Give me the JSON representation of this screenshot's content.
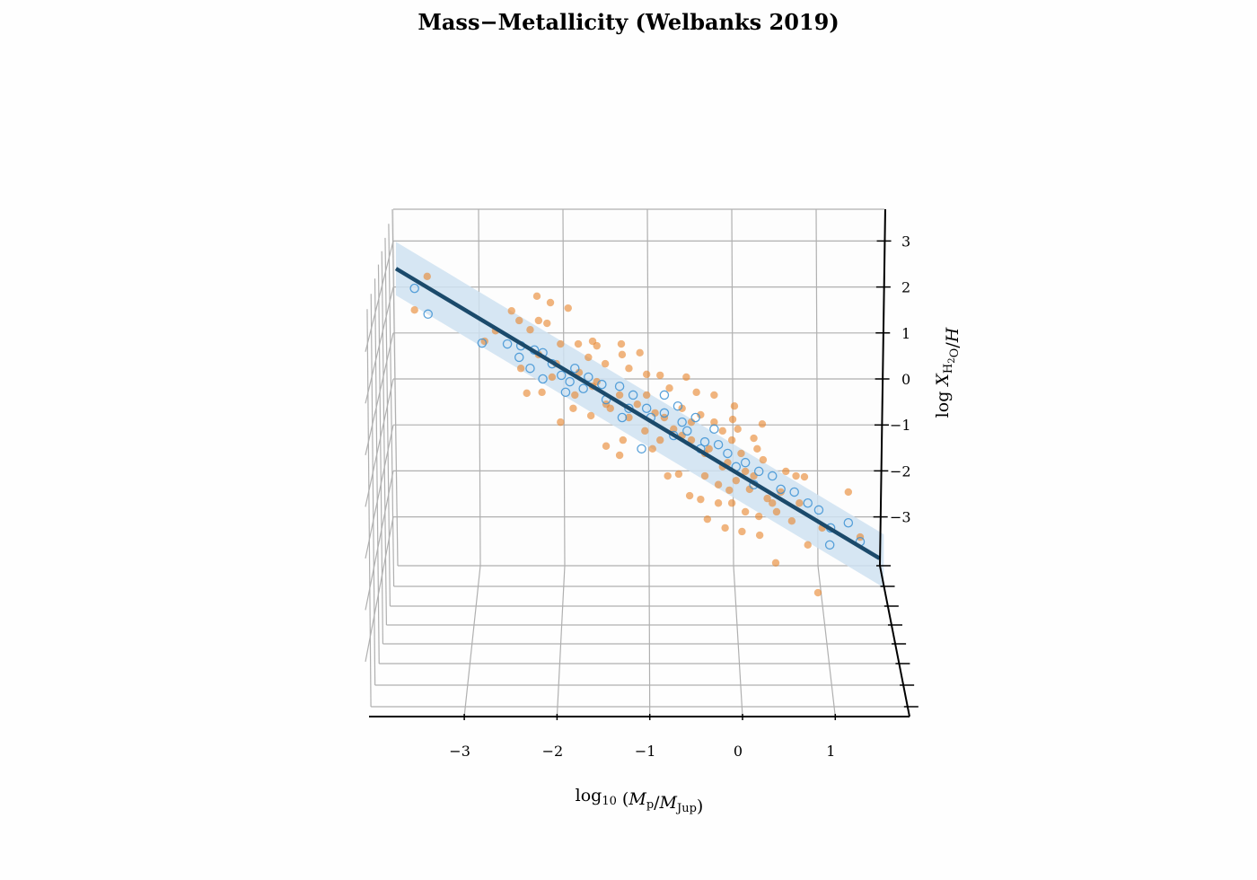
{
  "chart_data": {
    "type": "scatter",
    "projection": "3d",
    "title": "Mass−Metallicity (Welbanks 2019)",
    "xlabel": [
      {
        "t": "log",
        "style": "normal"
      },
      {
        "t": "10",
        "style": "sub"
      },
      {
        "t": " (",
        "style": "normal"
      },
      {
        "t": "M",
        "style": "italic"
      },
      {
        "t": "p",
        "style": "sub"
      },
      {
        "t": "/",
        "style": "normal"
      },
      {
        "t": "M",
        "style": "italic"
      },
      {
        "t": "Jup",
        "style": "sub"
      },
      {
        "t": ")",
        "style": "normal"
      }
    ],
    "zlabel": [
      {
        "t": "log ",
        "style": "normal"
      },
      {
        "t": "X",
        "style": "italic"
      },
      {
        "t": "H",
        "style": "sub"
      },
      {
        "t": "2",
        "style": "subsub"
      },
      {
        "t": "O",
        "style": "sub"
      },
      {
        "t": "/",
        "style": "normal"
      },
      {
        "t": "H",
        "style": "italic"
      }
    ],
    "x_ticks": [
      "−3",
      "−2",
      "−1",
      "0",
      "1"
    ],
    "x_tick_values": [
      -3,
      -2,
      -1,
      0,
      1
    ],
    "z_ticks": [
      "3",
      "2",
      "1",
      "0",
      "−1",
      "−2",
      "−3"
    ],
    "z_tick_values": [
      3,
      2,
      1,
      0,
      -1,
      -2,
      -3
    ],
    "xlim": [
      -4.0,
      1.8
    ],
    "zlim": [
      -4.1,
      3.7
    ],
    "grid": true,
    "fit_line": {
      "slope": -1.1,
      "intercept": -2.0,
      "x_range": [
        -4.0,
        1.73
      ],
      "band_halfwidth": 0.58,
      "color": "#1b4a6b",
      "band_color": "#cfe2f1"
    },
    "colors": {
      "orange": "#e8842a",
      "blue": "#3d92d4"
    },
    "series": [
      {
        "marker": "filled",
        "color": "#e8842a",
        "points": [
          [
            -3.63,
            2.23
          ],
          [
            -3.78,
            1.5
          ],
          [
            -2.33,
            1.8
          ],
          [
            -2.17,
            1.66
          ],
          [
            -1.96,
            1.54
          ],
          [
            -2.63,
            1.48
          ],
          [
            -2.54,
            1.27
          ],
          [
            -2.31,
            1.27
          ],
          [
            -2.21,
            1.21
          ],
          [
            -2.41,
            1.07
          ],
          [
            -2.05,
            0.76
          ],
          [
            -1.84,
            0.76
          ],
          [
            -1.62,
            0.72
          ],
          [
            -1.33,
            0.76
          ],
          [
            -1.32,
            0.53
          ],
          [
            -1.52,
            0.33
          ],
          [
            -1.24,
            0.23
          ],
          [
            -1.03,
            0.1
          ],
          [
            -0.87,
            0.08
          ],
          [
            -0.76,
            -0.2
          ],
          [
            -0.56,
            0.04
          ],
          [
            -0.44,
            -0.29
          ],
          [
            -0.23,
            -0.35
          ],
          [
            0.01,
            -0.59
          ],
          [
            -0.01,
            -0.88
          ],
          [
            0.34,
            -0.98
          ],
          [
            0.24,
            -1.29
          ],
          [
            0.28,
            -1.52
          ],
          [
            0.74,
            -2.11
          ],
          [
            0.84,
            -2.13
          ],
          [
            1.36,
            -2.46
          ],
          [
            0.69,
            -3.09
          ],
          [
            1.05,
            -3.24
          ],
          [
            0.88,
            -3.61
          ],
          [
            0.5,
            -4.0
          ],
          [
            1.0,
            -4.65
          ],
          [
            -2.45,
            -0.31
          ],
          [
            -2.27,
            -0.29
          ],
          [
            -2.05,
            -0.94
          ],
          [
            -1.9,
            -0.64
          ],
          [
            -1.69,
            -0.8
          ],
          [
            -1.35,
            -1.66
          ],
          [
            -1.51,
            -1.46
          ],
          [
            -1.31,
            -1.33
          ],
          [
            -1.05,
            -1.13
          ],
          [
            -0.96,
            -1.52
          ],
          [
            -0.78,
            -2.11
          ],
          [
            -0.65,
            -2.07
          ],
          [
            -0.52,
            -2.54
          ],
          [
            -0.39,
            -2.62
          ],
          [
            -0.31,
            -3.05
          ],
          [
            -0.1,
            -3.24
          ],
          [
            0.1,
            -3.32
          ],
          [
            0.31,
            -3.4
          ],
          [
            -0.18,
            -2.7
          ],
          [
            -0.05,
            -2.42
          ],
          [
            0.14,
            -2.89
          ],
          [
            0.46,
            -2.7
          ],
          [
            0.56,
            -2.46
          ],
          [
            0.35,
            -1.76
          ],
          [
            0.62,
            -2.01
          ],
          [
            -1.88,
            -0.35
          ],
          [
            -1.67,
            -0.16
          ],
          [
            -1.46,
            -0.64
          ],
          [
            -1.24,
            -0.84
          ],
          [
            -0.93,
            -0.74
          ],
          [
            -0.71,
            -1.09
          ],
          [
            -0.5,
            -1.33
          ],
          [
            -0.34,
            -1.62
          ],
          [
            -0.13,
            -1.91
          ],
          [
            0.03,
            -2.21
          ],
          [
            0.19,
            -2.4
          ],
          [
            0.4,
            -2.6
          ],
          [
            -2.1,
            0.33
          ],
          [
            -1.83,
            0.14
          ],
          [
            -1.62,
            -0.06
          ],
          [
            -1.35,
            -0.35
          ],
          [
            -1.14,
            -0.55
          ],
          [
            -0.82,
            -0.84
          ],
          [
            -0.61,
            -1.23
          ],
          [
            -0.29,
            -1.52
          ],
          [
            -0.07,
            -1.82
          ],
          [
            0.14,
            -2.01
          ],
          [
            -2.31,
            0.53
          ],
          [
            -2.15,
            0.04
          ],
          [
            -1.72,
            0.47
          ],
          [
            -1.51,
            -0.55
          ],
          [
            -1.03,
            -0.35
          ],
          [
            -0.87,
            -1.33
          ],
          [
            -0.5,
            -0.94
          ],
          [
            -0.23,
            -0.94
          ],
          [
            -0.02,
            -1.33
          ],
          [
            0.09,
            -1.62
          ],
          [
            0.24,
            -2.11
          ],
          [
            -0.18,
            -2.3
          ],
          [
            -0.34,
            -2.11
          ],
          [
            -0.02,
            -2.7
          ],
          [
            0.3,
            -2.99
          ],
          [
            0.51,
            -2.89
          ],
          [
            0.78,
            -2.7
          ],
          [
            1.5,
            -3.44
          ],
          [
            -2.95,
            0.82
          ],
          [
            -2.82,
            1.05
          ],
          [
            -2.52,
            0.23
          ],
          [
            -1.67,
            0.82
          ],
          [
            -1.11,
            0.57
          ],
          [
            -0.61,
            -0.64
          ],
          [
            -0.39,
            -0.78
          ],
          [
            -0.13,
            -1.13
          ],
          [
            0.05,
            -1.09
          ]
        ]
      },
      {
        "marker": "hollow",
        "color": "#3d92d4",
        "points": [
          [
            -3.78,
            1.97
          ],
          [
            -3.62,
            1.41
          ],
          [
            -2.98,
            0.78
          ],
          [
            -2.68,
            0.76
          ],
          [
            -2.52,
            0.72
          ],
          [
            -2.36,
            0.63
          ],
          [
            -2.54,
            0.47
          ],
          [
            -2.26,
            0.57
          ],
          [
            -2.41,
            0.23
          ],
          [
            -2.26,
            0.0
          ],
          [
            -2.04,
            0.08
          ],
          [
            -1.99,
            -0.29
          ],
          [
            -1.88,
            0.23
          ],
          [
            -1.72,
            0.04
          ],
          [
            -1.56,
            -0.12
          ],
          [
            -1.35,
            -0.16
          ],
          [
            -1.32,
            -0.84
          ],
          [
            -1.19,
            -0.35
          ],
          [
            -1.09,
            -1.52
          ],
          [
            -1.03,
            -0.64
          ],
          [
            -0.82,
            -0.74
          ],
          [
            -0.61,
            -0.94
          ],
          [
            -0.55,
            -1.13
          ],
          [
            -0.34,
            -1.37
          ],
          [
            -0.18,
            -1.43
          ],
          [
            -0.07,
            -1.62
          ],
          [
            0.14,
            -1.82
          ],
          [
            0.3,
            -2.01
          ],
          [
            0.46,
            -2.11
          ],
          [
            0.56,
            -2.4
          ],
          [
            0.72,
            -2.46
          ],
          [
            0.88,
            -2.7
          ],
          [
            1.01,
            -2.85
          ],
          [
            1.15,
            -3.24
          ],
          [
            1.36,
            -3.13
          ],
          [
            1.14,
            -3.61
          ],
          [
            1.5,
            -3.54
          ],
          [
            -0.82,
            -0.35
          ],
          [
            -0.66,
            -0.59
          ],
          [
            -0.45,
            -0.84
          ],
          [
            -0.23,
            -1.09
          ],
          [
            -2.15,
            0.33
          ],
          [
            -1.94,
            -0.06
          ],
          [
            -1.78,
            -0.21
          ],
          [
            -1.51,
            -0.45
          ],
          [
            -1.24,
            -0.64
          ],
          [
            -0.98,
            -0.84
          ],
          [
            -0.71,
            -1.23
          ],
          [
            -0.39,
            -1.52
          ],
          [
            0.03,
            -1.91
          ],
          [
            0.24,
            -2.3
          ]
        ]
      }
    ]
  }
}
